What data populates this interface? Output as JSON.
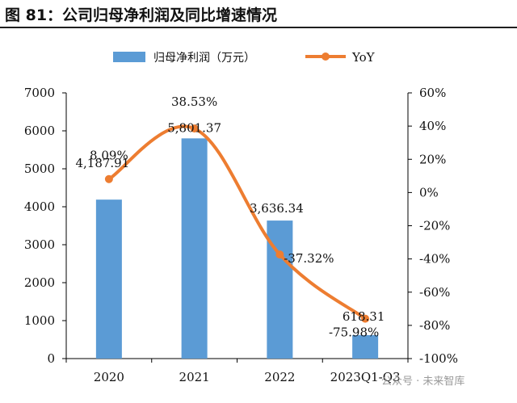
{
  "figure_title": "图 81：公司归母净利润及同比增速情况",
  "watermark": "公众号 · 未来智库",
  "colors": {
    "bar": "#5b9bd5",
    "line": "#ed7d31",
    "axis": "#000000",
    "title_rule": "#1f1f1f"
  },
  "chart_data": {
    "type": "bar",
    "categories": [
      "2020",
      "2021",
      "2022",
      "2023Q1-Q3"
    ],
    "series": [
      {
        "name": "归母净利润（万元）",
        "type": "bar",
        "axis": "left",
        "values": [
          4187.91,
          5801.37,
          3636.34,
          618.31
        ],
        "labels": [
          "4,187.91",
          "5,801.37",
          "3,636.34",
          "618.31"
        ]
      },
      {
        "name": "YoY",
        "type": "line",
        "axis": "right",
        "smooth": true,
        "values": [
          8.09,
          38.53,
          -37.32,
          -75.98
        ],
        "labels": [
          "8.09%",
          "38.53%",
          "-37.32%",
          "-75.98%"
        ]
      }
    ],
    "y_left": {
      "ylim": [
        0,
        7000
      ],
      "ticks": [
        "0",
        "1000",
        "2000",
        "3000",
        "4000",
        "5000",
        "6000",
        "7000"
      ]
    },
    "y_right": {
      "ylim": [
        -100,
        60
      ],
      "ticks": [
        "-100%",
        "-80%",
        "-60%",
        "-40%",
        "-20%",
        "0%",
        "20%",
        "40%",
        "60%"
      ]
    },
    "legend_position": "top-center",
    "grid": false
  }
}
